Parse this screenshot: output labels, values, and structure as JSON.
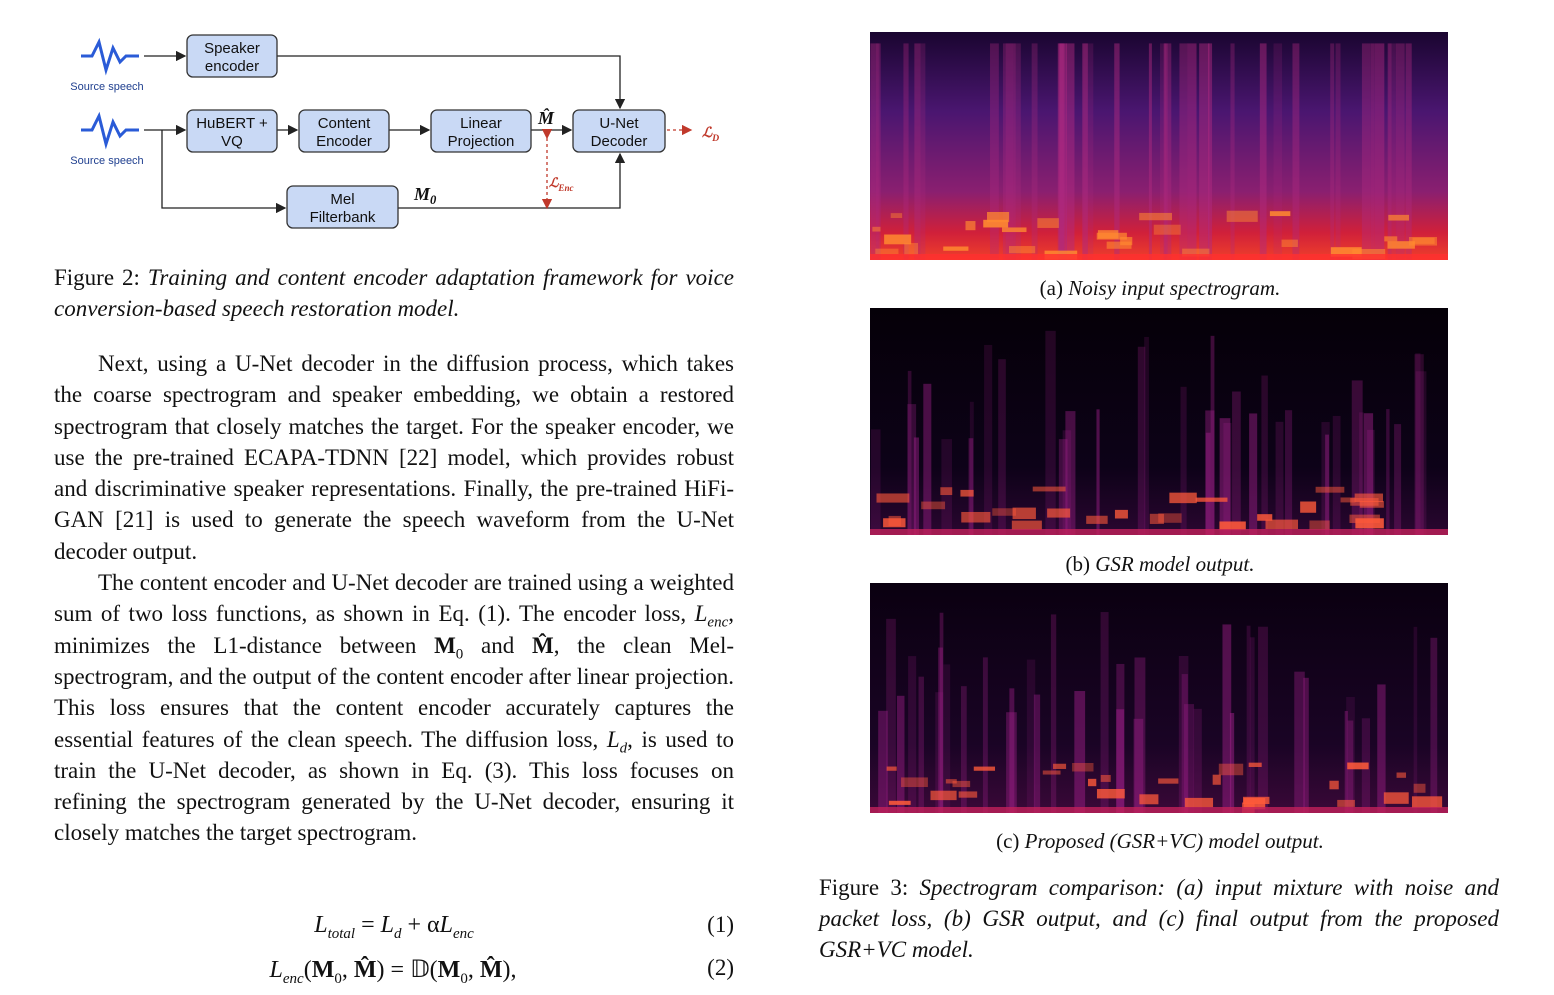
{
  "figure2": {
    "nodes": [
      "Speaker encoder",
      "HuBERT + VQ",
      "Content Encoder",
      "Linear Projection",
      "U-Net Decoder",
      "Mel Filterbank"
    ],
    "sources": [
      "Source speech",
      "Source speech"
    ],
    "symbols": [
      {
        "b": "M̂"
      },
      {
        "b": "M",
        "sub": "0"
      },
      {
        "v": "ℒ",
        "sub": "Enc"
      },
      {
        "v": "ℒ",
        "sub": "D"
      }
    ],
    "caption": {
      "label": "Figure 2:",
      "text": "Training and content encoder adaptation framework for voice conversion-based speech restoration model."
    }
  },
  "paragraphs": [
    [
      "Next, using a U-Net decoder in the diffusion process, which takes the coarse spectrogram and speaker embedding, we obtain a restored spectrogram that closely matches the target. For the speaker encoder, we use the pre-trained ECAPA-TDNN [22] model, which provides robust and discriminative speaker representations. Finally, the pre-trained HiFi-GAN [21] is used to generate the speech waveform from the U-Net decoder output."
    ],
    [
      "The content encoder and U-Net decoder are trained using a weighted sum of two loss functions, as shown in Eq. (1). The encoder loss, ",
      {
        "v": "L",
        "sub": "enc"
      },
      ", minimizes the L1-distance between ",
      {
        "b": "M",
        "sub": "0"
      },
      " and ",
      {
        "b": "M̂"
      },
      ", the clean Mel-spectrogram, and the output of the content encoder after linear projection. This loss ensures that the content encoder accurately captures the essential features of the clean speech. The diffusion loss, ",
      {
        "v": "L",
        "sub": "d"
      },
      ", is used to train the U-Net decoder, as shown in Eq. (3). This loss focuses on refining the spectrogram generated by the U-Net decoder, ensuring it closely matches the target spectrogram."
    ]
  ],
  "equations": [
    {
      "parts": [
        {
          "v": "L",
          "sub": "total"
        },
        " = ",
        {
          "v": "L",
          "sub": "d"
        },
        " + α",
        {
          "v": "L",
          "sub": "enc"
        }
      ],
      "number": "(1)"
    },
    {
      "parts": [
        {
          "v": "L",
          "sub": "enc"
        },
        "(",
        {
          "b": "M",
          "sub": "0"
        },
        ", ",
        {
          "b": "M̂"
        },
        ") = 𝔻(",
        {
          "b": "M",
          "sub": "0"
        },
        ", ",
        {
          "b": "M̂"
        },
        "),"
      ],
      "number": "(2)"
    }
  ],
  "figure3": {
    "subfigures": [
      {
        "label": "(a)",
        "caption": "Noisy input spectrogram."
      },
      {
        "label": "(b)",
        "caption": "GSR model output."
      },
      {
        "label": "(c)",
        "caption": "Proposed (GSR+VC) model output."
      }
    ],
    "caption": {
      "label": "Figure 3:",
      "text": "Spectrogram comparison: (a) input mixture with noise and packet loss, (b) GSR output, and (c) final output from the proposed GSR+VC model."
    }
  }
}
